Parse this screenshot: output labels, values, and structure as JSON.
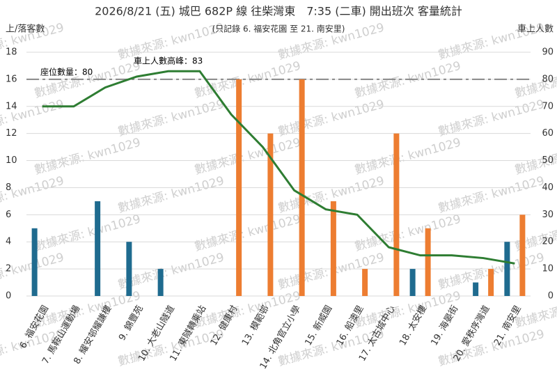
{
  "chart_data": {
    "type": "bar-line",
    "title": "2026/8/21 (五) 城巴 682P 線 往柴灣東　7:35 (二車) 開出班次 客量統計",
    "subtitle": "(只記錄 6. 福安花園 至 21. 南安里)",
    "y_label": "上/落客數",
    "y2_label": "車上人數",
    "watermark": "數據來源: kwn1029",
    "categories": [
      "6. 福安花園",
      "7. 馬鞍山運動場",
      "8. 耀安邨耀謙樓",
      "9. 錦豐苑",
      "10. 大老山隧道",
      "11. 東隧轉乘站",
      "12. 健康村",
      "13. 模範邨",
      "14. 北角官立小學",
      "15. 新威園",
      "16. 船澳里",
      "17. 太古城中心",
      "18. 太安樓",
      "19. 海晏街",
      "20. 愛秩序灣道",
      "21. 南安里"
    ],
    "series": [
      {
        "type": "bar",
        "color": "#1f6b8f",
        "values": [
          5,
          0,
          7,
          4,
          2,
          0,
          0,
          0,
          0,
          0,
          0,
          0,
          2,
          0,
          1,
          4
        ]
      },
      {
        "type": "bar",
        "color": "#ed7d31",
        "values": [
          0,
          0,
          0,
          0,
          0,
          0,
          16,
          12,
          16,
          7,
          2,
          12,
          5,
          0,
          2,
          6
        ]
      },
      {
        "type": "line",
        "axis": "y2",
        "color": "#2e7d32",
        "values": [
          70,
          70,
          77,
          81,
          83,
          83,
          67,
          55,
          39,
          32,
          30,
          18,
          15,
          15,
          14,
          12
        ]
      }
    ],
    "reference_line": {
      "value": 80,
      "label": "座位數量：80",
      "color": "#888888"
    },
    "peak_annotation": "車上人數高峰：83",
    "ylim": [
      0,
      18
    ],
    "yticks": [
      0,
      2,
      4,
      6,
      8,
      10,
      12,
      14,
      16,
      18
    ],
    "y2lim": [
      0,
      90
    ],
    "y2ticks": [
      0,
      10,
      20,
      30,
      40,
      50,
      60,
      70,
      80,
      90
    ],
    "grid": true
  }
}
